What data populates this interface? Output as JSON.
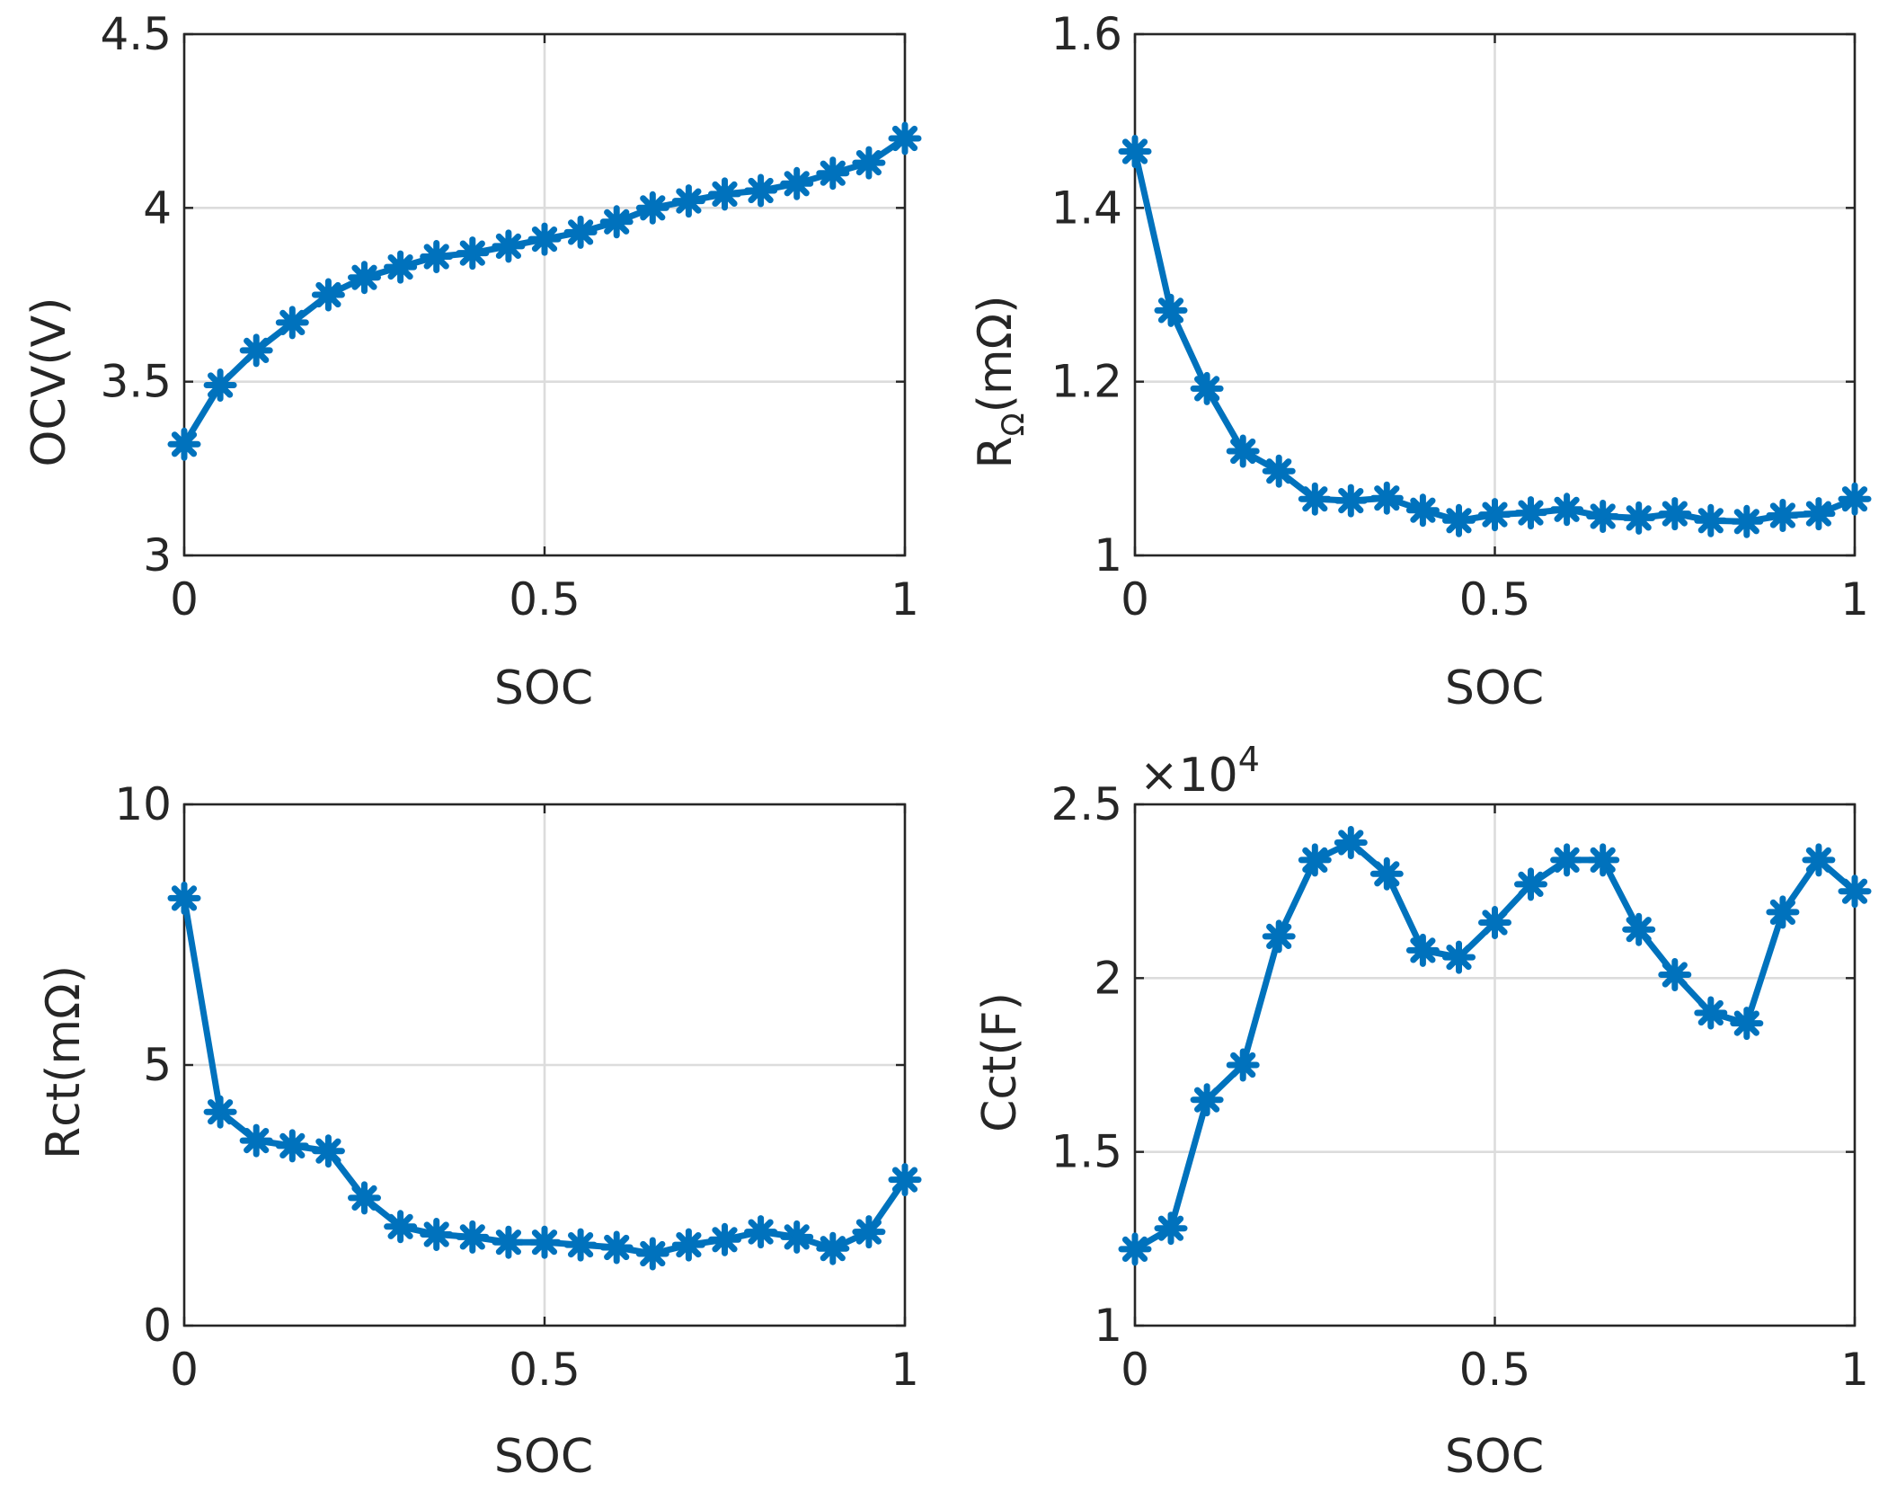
{
  "colors": {
    "series": "#0072bd",
    "axis": "#262626",
    "grid": "#dcdcdc",
    "background": "#ffffff"
  },
  "chart_data": [
    {
      "type": "line",
      "xlabel": "SOC",
      "ylabel": "OCV(V)",
      "xlim": [
        0,
        1
      ],
      "ylim": [
        3,
        4.5
      ],
      "xticks": [
        0,
        0.5,
        1
      ],
      "xtick_labels": [
        "0",
        "0.5",
        "1"
      ],
      "yticks": [
        3,
        3.5,
        4,
        4.5
      ],
      "ytick_labels": [
        "3",
        "3.5",
        "4",
        "4.5"
      ],
      "grid": true,
      "marker": "asterisk",
      "x": [
        0,
        0.05,
        0.1,
        0.15,
        0.2,
        0.25,
        0.3,
        0.35,
        0.4,
        0.45,
        0.5,
        0.55,
        0.6,
        0.65,
        0.7,
        0.75,
        0.8,
        0.85,
        0.9,
        0.95,
        1
      ],
      "values": [
        3.32,
        3.49,
        3.59,
        3.67,
        3.75,
        3.8,
        3.83,
        3.86,
        3.87,
        3.89,
        3.91,
        3.93,
        3.96,
        4.0,
        4.02,
        4.04,
        4.05,
        4.07,
        4.1,
        4.13,
        4.2
      ]
    },
    {
      "type": "line",
      "xlabel": "SOC",
      "ylabel_main": "R",
      "ylabel_sub": "Ω",
      "ylabel_unit": "(mΩ)",
      "xlim": [
        0,
        1
      ],
      "ylim": [
        1,
        1.6
      ],
      "xticks": [
        0,
        0.5,
        1
      ],
      "xtick_labels": [
        "0",
        "0.5",
        "1"
      ],
      "yticks": [
        1,
        1.2,
        1.4,
        1.6
      ],
      "ytick_labels": [
        "1",
        "1.2",
        "1.4",
        "1.6"
      ],
      "grid": true,
      "marker": "asterisk",
      "x": [
        0,
        0.05,
        0.1,
        0.15,
        0.2,
        0.25,
        0.3,
        0.35,
        0.4,
        0.45,
        0.5,
        0.55,
        0.6,
        0.65,
        0.7,
        0.75,
        0.8,
        0.85,
        0.9,
        0.95,
        1
      ],
      "values": [
        1.465,
        1.282,
        1.192,
        1.12,
        1.097,
        1.065,
        1.063,
        1.066,
        1.052,
        1.04,
        1.047,
        1.049,
        1.053,
        1.045,
        1.043,
        1.048,
        1.04,
        1.039,
        1.046,
        1.048,
        1.065
      ]
    },
    {
      "type": "line",
      "xlabel": "SOC",
      "ylabel": "Rct(mΩ)",
      "xlim": [
        0,
        1
      ],
      "ylim": [
        0,
        10
      ],
      "xticks": [
        0,
        0.5,
        1
      ],
      "xtick_labels": [
        "0",
        "0.5",
        "1"
      ],
      "yticks": [
        0,
        5,
        10
      ],
      "ytick_labels": [
        "0",
        "5",
        "10"
      ],
      "grid": true,
      "marker": "asterisk",
      "x": [
        0,
        0.05,
        0.1,
        0.15,
        0.2,
        0.25,
        0.3,
        0.35,
        0.4,
        0.45,
        0.5,
        0.55,
        0.6,
        0.65,
        0.7,
        0.75,
        0.8,
        0.85,
        0.9,
        0.95,
        1
      ],
      "values": [
        8.2,
        4.1,
        3.55,
        3.45,
        3.35,
        2.45,
        1.9,
        1.75,
        1.7,
        1.6,
        1.6,
        1.55,
        1.5,
        1.38,
        1.55,
        1.65,
        1.8,
        1.7,
        1.48,
        1.8,
        2.8
      ]
    },
    {
      "type": "line",
      "xlabel": "SOC",
      "ylabel": "Cct(F)",
      "exponent_label": "×10",
      "exponent_power": "4",
      "xlim": [
        0,
        1
      ],
      "ylim": [
        1,
        2.5
      ],
      "xticks": [
        0,
        0.5,
        1
      ],
      "xtick_labels": [
        "0",
        "0.5",
        "1"
      ],
      "yticks": [
        1,
        1.5,
        2,
        2.5
      ],
      "ytick_labels": [
        "1",
        "1.5",
        "2",
        "2.5"
      ],
      "grid": true,
      "marker": "asterisk",
      "x": [
        0,
        0.05,
        0.1,
        0.15,
        0.2,
        0.25,
        0.3,
        0.35,
        0.4,
        0.45,
        0.5,
        0.55,
        0.6,
        0.65,
        0.7,
        0.75,
        0.8,
        0.85,
        0.9,
        0.95,
        1
      ],
      "values": [
        1.22,
        1.28,
        1.65,
        1.75,
        2.12,
        2.34,
        2.39,
        2.3,
        2.08,
        2.06,
        2.16,
        2.27,
        2.34,
        2.34,
        2.14,
        2.01,
        1.9,
        1.87,
        2.19,
        2.34,
        2.25
      ]
    }
  ]
}
